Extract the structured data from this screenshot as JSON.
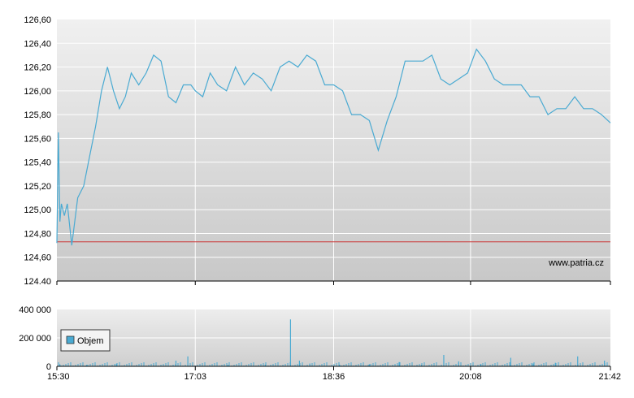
{
  "chart_data": [
    {
      "type": "line",
      "y_tick_labels": [
        "126,60",
        "126,40",
        "126,20",
        "126,00",
        "125,80",
        "125,60",
        "125,40",
        "125,20",
        "125,00",
        "124,80",
        "124,60",
        "124.40"
      ],
      "y_tick_values": [
        126.6,
        126.4,
        126.2,
        126.0,
        125.8,
        125.6,
        125.4,
        125.2,
        125.0,
        124.8,
        124.6,
        124.4
      ],
      "ylim": [
        124.4,
        126.6
      ],
      "x_tick_labels": [
        "15:30",
        "17:03",
        "18:36",
        "20:08",
        "21:42"
      ],
      "grid": true,
      "reference_line": {
        "value": 124.73,
        "color": "#cc3333"
      },
      "watermark": "www.patria.cz",
      "line_color": "#4aaad2",
      "series": [
        {
          "x": [
            "15:30",
            "15:31",
            "15:32",
            "15:33",
            "15:35",
            "15:37",
            "15:40",
            "15:44",
            "15:48",
            "15:52",
            "15:56",
            "16:00",
            "16:04",
            "16:08",
            "16:12",
            "16:16",
            "16:20",
            "16:25",
            "16:30",
            "16:35",
            "16:40",
            "16:45",
            "16:50",
            "16:55",
            "17:00",
            "17:03",
            "17:08",
            "17:13",
            "17:18",
            "17:24",
            "17:30",
            "17:36",
            "17:42",
            "17:48",
            "17:54",
            "18:00",
            "18:06",
            "18:12",
            "18:18",
            "18:24",
            "18:30",
            "18:36",
            "18:42",
            "18:48",
            "18:54",
            "19:00",
            "19:06",
            "19:12",
            "19:18",
            "19:24",
            "19:30",
            "19:36",
            "19:42",
            "19:48",
            "19:54",
            "20:00",
            "20:06",
            "20:12",
            "20:18",
            "20:24",
            "20:30",
            "20:36",
            "20:42",
            "20:48",
            "20:54",
            "21:00",
            "21:06",
            "21:12",
            "21:18",
            "21:24",
            "21:30",
            "21:36",
            "21:42"
          ],
          "y": [
            124.72,
            125.65,
            124.9,
            125.05,
            124.95,
            125.05,
            124.7,
            125.1,
            125.2,
            125.45,
            125.7,
            126.0,
            126.2,
            126.0,
            125.85,
            125.95,
            126.15,
            126.05,
            126.15,
            126.3,
            126.25,
            125.95,
            125.9,
            126.05,
            126.05,
            126.0,
            125.95,
            126.15,
            126.05,
            126.0,
            126.2,
            126.05,
            126.15,
            126.1,
            126.0,
            126.2,
            126.25,
            126.2,
            126.3,
            126.25,
            126.05,
            126.05,
            126.0,
            125.8,
            125.8,
            125.75,
            125.5,
            125.75,
            125.95,
            126.25,
            126.25,
            126.25,
            126.3,
            126.1,
            126.05,
            126.1,
            126.15,
            126.35,
            126.25,
            126.1,
            126.05,
            126.05,
            126.05,
            125.95,
            125.95,
            125.8,
            125.85,
            125.85,
            125.95,
            125.85,
            125.85,
            125.8,
            125.73
          ]
        }
      ]
    },
    {
      "type": "bar",
      "y_tick_labels": [
        "400 000",
        "200 000",
        "0"
      ],
      "y_tick_values": [
        400000,
        200000,
        0
      ],
      "ylim": [
        0,
        400000
      ],
      "x_tick_labels": [
        "15:30",
        "17:03",
        "18:36",
        "20:08",
        "21:42"
      ],
      "grid": true,
      "legend": {
        "entries": [
          "Objem"
        ],
        "placement": "top-left"
      },
      "bar_color": "#4aaad2",
      "series": [
        {
          "name": "Objem",
          "x": [
            "15:32",
            "15:50",
            "16:10",
            "16:35",
            "16:50",
            "16:58",
            "17:25",
            "17:50",
            "18:07",
            "18:13",
            "18:20",
            "18:40",
            "19:00",
            "19:20",
            "19:35",
            "19:50",
            "20:00",
            "20:15",
            "20:35",
            "20:50",
            "21:05",
            "21:20",
            "21:38"
          ],
          "values": [
            15000,
            10000,
            18000,
            12000,
            40000,
            70000,
            10000,
            12000,
            330000,
            40000,
            20000,
            12000,
            15000,
            30000,
            10000,
            80000,
            35000,
            15000,
            60000,
            20000,
            25000,
            70000,
            40000
          ]
        }
      ]
    }
  ]
}
